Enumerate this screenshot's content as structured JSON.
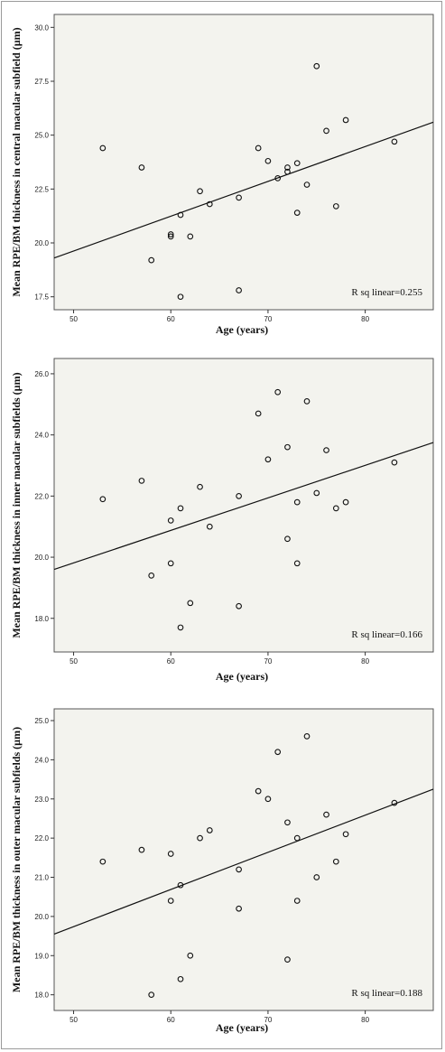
{
  "chart_data": [
    {
      "type": "scatter",
      "title": "",
      "xlabel": "Age (years)",
      "ylabel": "Mean RPE/BM thickness in central macular subfield (µm)",
      "xlim": [
        48,
        87
      ],
      "ylim": [
        16.9,
        30.6
      ],
      "xticks": [
        50,
        60,
        70,
        80
      ],
      "yticks": [
        17.5,
        20.0,
        22.5,
        25.0,
        27.5,
        30.0
      ],
      "ytick_labels": [
        "17.5",
        "20.0",
        "22.5",
        "25.0",
        "27.5",
        "30.0"
      ],
      "x": [
        53,
        57,
        58,
        60,
        60,
        61,
        61,
        62,
        63,
        64,
        67,
        67,
        69,
        70,
        71,
        72,
        72,
        73,
        73,
        74,
        75,
        76,
        77,
        78,
        83
      ],
      "y": [
        24.4,
        23.5,
        19.2,
        20.4,
        20.3,
        21.3,
        17.5,
        20.3,
        22.4,
        21.8,
        22.1,
        17.8,
        24.4,
        23.8,
        23.0,
        23.5,
        23.3,
        23.7,
        21.4,
        22.7,
        28.2,
        25.2,
        21.7,
        25.7,
        24.7
      ],
      "fit_line": {
        "x": [
          48,
          87
        ],
        "y": [
          19.3,
          25.6
        ]
      },
      "annotation": "R sq linear=0.255",
      "grid": false,
      "background": "#f3f3ee"
    },
    {
      "type": "scatter",
      "title": "",
      "xlabel": "Age (years)",
      "ylabel": "Mean RPE/BM thickness in inner macular subfields (µm)",
      "xlim": [
        48,
        87
      ],
      "ylim": [
        16.9,
        26.5
      ],
      "xticks": [
        50,
        60,
        70,
        80
      ],
      "yticks": [
        18.0,
        20.0,
        22.0,
        24.0,
        26.0
      ],
      "ytick_labels": [
        "18.0",
        "20.0",
        "22.0",
        "24.0",
        "26.0"
      ],
      "x": [
        53,
        57,
        58,
        60,
        60,
        61,
        61,
        62,
        63,
        64,
        67,
        67,
        69,
        70,
        71,
        72,
        72,
        73,
        73,
        74,
        75,
        76,
        77,
        78,
        83
      ],
      "y": [
        21.9,
        22.5,
        19.4,
        21.2,
        19.8,
        21.6,
        17.7,
        18.5,
        22.3,
        21.0,
        22.0,
        18.4,
        24.7,
        23.2,
        25.4,
        23.6,
        20.6,
        21.8,
        19.8,
        25.1,
        22.1,
        23.5,
        21.6,
        21.8,
        23.1
      ],
      "fit_line": {
        "x": [
          48,
          87
        ],
        "y": [
          19.6,
          23.75
        ]
      },
      "annotation": "R sq linear=0.166",
      "grid": false,
      "background": "#f3f3ee"
    },
    {
      "type": "scatter",
      "title": "",
      "xlabel": "Age (years)",
      "ylabel": "Mean RPE/BM thickness in outer macular subfields (µm)",
      "xlim": [
        48,
        87
      ],
      "ylim": [
        17.6,
        25.3
      ],
      "xticks": [
        50,
        60,
        70,
        80
      ],
      "yticks": [
        18.0,
        19.0,
        20.0,
        21.0,
        22.0,
        23.0,
        24.0,
        25.0
      ],
      "ytick_labels": [
        "18.0",
        "19.0",
        "20.0",
        "21.0",
        "22.0",
        "23.0",
        "24.0",
        "25.0"
      ],
      "x": [
        53,
        57,
        58,
        60,
        60,
        61,
        61,
        62,
        63,
        64,
        67,
        67,
        69,
        70,
        71,
        72,
        72,
        73,
        73,
        74,
        75,
        76,
        77,
        78,
        83
      ],
      "y": [
        21.4,
        21.7,
        18.0,
        21.6,
        20.4,
        20.8,
        18.4,
        19.0,
        22.0,
        22.2,
        21.2,
        20.2,
        23.2,
        23.0,
        24.2,
        22.4,
        18.9,
        22.0,
        20.4,
        24.6,
        21.0,
        22.6,
        21.4,
        22.1,
        22.9
      ],
      "fit_line": {
        "x": [
          48,
          87
        ],
        "y": [
          19.55,
          23.25
        ]
      },
      "annotation": "R sq linear=0.188",
      "grid": false,
      "background": "#f3f3ee"
    }
  ]
}
